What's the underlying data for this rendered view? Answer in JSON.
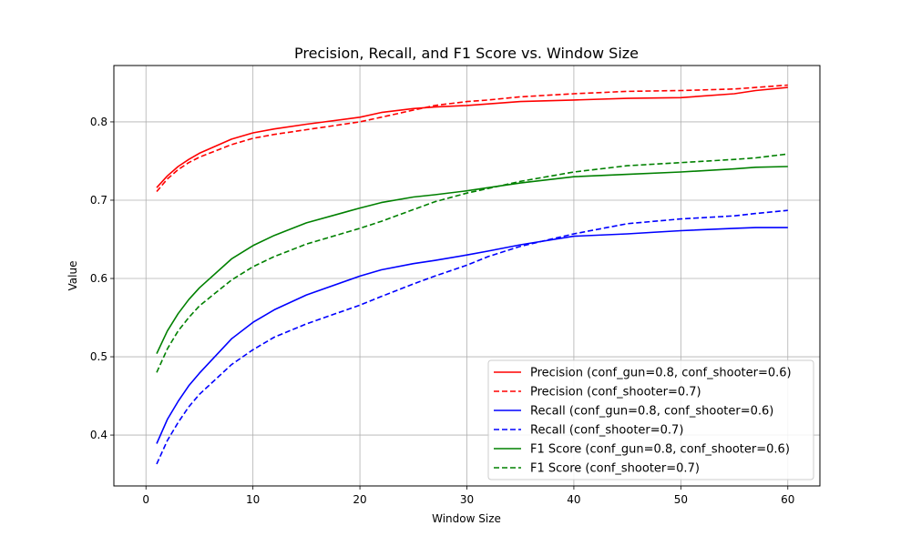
{
  "chart_data": {
    "type": "line",
    "title": "Precision, Recall, and F1 Score vs. Window Size",
    "xlabel": "Window Size",
    "ylabel": "Value",
    "xlim": [
      -3,
      63
    ],
    "ylim": [
      0.335,
      0.872
    ],
    "xticks": [
      0,
      10,
      20,
      30,
      40,
      50,
      60
    ],
    "yticks": [
      0.4,
      0.5,
      0.6,
      0.7,
      0.8
    ],
    "ytick_labels": [
      "0.4",
      "0.5",
      "0.6",
      "0.7",
      "0.8"
    ],
    "grid": true,
    "legend_position": "lower-right",
    "x": [
      1,
      2,
      3,
      4,
      5,
      8,
      10,
      12,
      15,
      20,
      22,
      25,
      27,
      30,
      32,
      35,
      40,
      45,
      50,
      55,
      57,
      60
    ],
    "series": [
      {
        "name": "Precision (conf_gun=0.8, conf_shooter=0.6)",
        "color": "#ff0000",
        "dashed": false,
        "values": [
          0.716,
          0.731,
          0.743,
          0.752,
          0.76,
          0.778,
          0.786,
          0.791,
          0.797,
          0.806,
          0.812,
          0.817,
          0.819,
          0.821,
          0.823,
          0.826,
          0.828,
          0.83,
          0.831,
          0.836,
          0.84,
          0.844
        ]
      },
      {
        "name": "Precision (conf_shooter=0.7)",
        "color": "#ff0000",
        "dashed": true,
        "values": [
          0.711,
          0.727,
          0.739,
          0.748,
          0.755,
          0.771,
          0.779,
          0.784,
          0.79,
          0.8,
          0.806,
          0.815,
          0.821,
          0.826,
          0.828,
          0.832,
          0.836,
          0.839,
          0.84,
          0.842,
          0.844,
          0.847
        ]
      },
      {
        "name": "Recall (conf_gun=0.8, conf_shooter=0.6)",
        "color": "#0000ff",
        "dashed": false,
        "values": [
          0.389,
          0.42,
          0.443,
          0.463,
          0.479,
          0.523,
          0.544,
          0.56,
          0.579,
          0.603,
          0.611,
          0.619,
          0.623,
          0.63,
          0.635,
          0.643,
          0.654,
          0.657,
          0.661,
          0.664,
          0.665,
          0.665
        ]
      },
      {
        "name": "Recall (conf_shooter=0.7)",
        "color": "#0000ff",
        "dashed": true,
        "values": [
          0.363,
          0.393,
          0.416,
          0.436,
          0.452,
          0.49,
          0.509,
          0.525,
          0.542,
          0.566,
          0.577,
          0.593,
          0.603,
          0.617,
          0.628,
          0.641,
          0.657,
          0.67,
          0.676,
          0.68,
          0.683,
          0.687
        ]
      },
      {
        "name": "F1 Score (conf_gun=0.8, conf_shooter=0.6)",
        "color": "#008000",
        "dashed": false,
        "values": [
          0.504,
          0.533,
          0.555,
          0.573,
          0.588,
          0.625,
          0.642,
          0.655,
          0.671,
          0.69,
          0.697,
          0.704,
          0.707,
          0.712,
          0.716,
          0.722,
          0.73,
          0.733,
          0.736,
          0.74,
          0.742,
          0.743
        ]
      },
      {
        "name": "F1 Score (conf_shooter=0.7)",
        "color": "#008000",
        "dashed": true,
        "values": [
          0.48,
          0.51,
          0.533,
          0.55,
          0.565,
          0.598,
          0.615,
          0.628,
          0.644,
          0.664,
          0.673,
          0.688,
          0.698,
          0.709,
          0.715,
          0.724,
          0.736,
          0.744,
          0.748,
          0.752,
          0.754,
          0.759
        ]
      }
    ]
  }
}
